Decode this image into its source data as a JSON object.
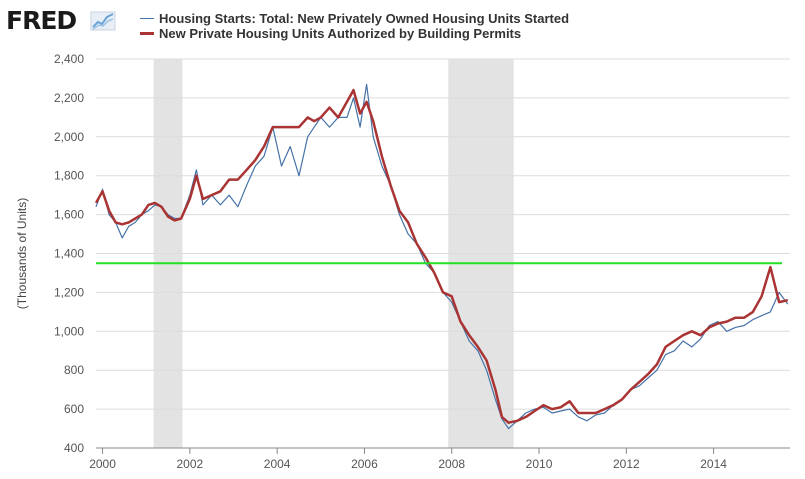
{
  "branding": {
    "logo_text": "FRED",
    "logo_icon": "chart-line-icon"
  },
  "chart_data": {
    "type": "line",
    "title": "",
    "xlabel": "",
    "ylabel": "(Thousands of Units)",
    "ylim": [
      400,
      2400
    ],
    "xlim": [
      1999.85,
      2015.75
    ],
    "y_ticks": [
      400,
      600,
      800,
      1000,
      1200,
      1400,
      1600,
      1800,
      2000,
      2200,
      2400
    ],
    "y_tick_labels": [
      "400",
      "600",
      "800",
      "1,000",
      "1,200",
      "1,400",
      "1,600",
      "1,800",
      "2,000",
      "2,200",
      "2,400"
    ],
    "x_ticks": [
      2000,
      2002,
      2004,
      2006,
      2008,
      2010,
      2012,
      2014
    ],
    "x_tick_labels": [
      "2000",
      "2002",
      "2004",
      "2006",
      "2008",
      "2010",
      "2012",
      "2014"
    ],
    "grid": true,
    "legend_position": "top-left",
    "recessions": [
      {
        "start": 2001.17,
        "end": 2001.83
      },
      {
        "start": 2007.92,
        "end": 2009.42
      }
    ],
    "reference_line": {
      "y": 1350,
      "color": "#22e022"
    },
    "series": [
      {
        "name": "Housing Starts: Total: New Privately Owned Housing Units Started",
        "color": "#4572a7",
        "x": [
          1999.85,
          2000.0,
          2000.15,
          2000.3,
          2000.45,
          2000.6,
          2000.75,
          2000.9,
          2001.05,
          2001.2,
          2001.35,
          2001.5,
          2001.65,
          2001.8,
          2002.0,
          2002.15,
          2002.3,
          2002.5,
          2002.7,
          2002.9,
          2003.1,
          2003.3,
          2003.5,
          2003.7,
          2003.9,
          2004.1,
          2004.3,
          2004.5,
          2004.7,
          2004.85,
          2005.0,
          2005.2,
          2005.4,
          2005.6,
          2005.75,
          2005.9,
          2006.05,
          2006.2,
          2006.4,
          2006.6,
          2006.8,
          2007.0,
          2007.2,
          2007.4,
          2007.6,
          2007.8,
          2008.0,
          2008.2,
          2008.4,
          2008.6,
          2008.8,
          2009.0,
          2009.15,
          2009.3,
          2009.5,
          2009.7,
          2009.9,
          2010.1,
          2010.3,
          2010.5,
          2010.7,
          2010.9,
          2011.1,
          2011.3,
          2011.5,
          2011.7,
          2011.9,
          2012.1,
          2012.3,
          2012.5,
          2012.7,
          2012.9,
          2013.1,
          2013.3,
          2013.5,
          2013.7,
          2013.9,
          2014.1,
          2014.3,
          2014.5,
          2014.7,
          2014.9,
          2015.1,
          2015.3,
          2015.5,
          2015.7
        ],
        "values": [
          1640,
          1730,
          1600,
          1560,
          1480,
          1540,
          1560,
          1600,
          1620,
          1650,
          1640,
          1600,
          1580,
          1580,
          1700,
          1830,
          1650,
          1700,
          1650,
          1700,
          1640,
          1750,
          1850,
          1900,
          2050,
          1850,
          1950,
          1800,
          2000,
          2050,
          2100,
          2050,
          2100,
          2100,
          2200,
          2050,
          2270,
          2000,
          1850,
          1750,
          1600,
          1500,
          1450,
          1350,
          1300,
          1200,
          1150,
          1050,
          950,
          900,
          800,
          650,
          550,
          500,
          540,
          580,
          600,
          610,
          580,
          590,
          600,
          560,
          540,
          570,
          580,
          620,
          650,
          700,
          720,
          760,
          800,
          880,
          900,
          950,
          920,
          960,
          1030,
          1050,
          1000,
          1020,
          1030,
          1060,
          1080,
          1100,
          1200,
          1140
        ]
      },
      {
        "name": "New Private Housing Units Authorized by Building Permits",
        "color": "#aa3333",
        "x": [
          1999.85,
          2000.0,
          2000.15,
          2000.3,
          2000.45,
          2000.6,
          2000.75,
          2000.9,
          2001.05,
          2001.2,
          2001.35,
          2001.5,
          2001.65,
          2001.8,
          2002.0,
          2002.15,
          2002.3,
          2002.5,
          2002.7,
          2002.9,
          2003.1,
          2003.3,
          2003.5,
          2003.7,
          2003.9,
          2004.1,
          2004.3,
          2004.5,
          2004.7,
          2004.85,
          2005.0,
          2005.2,
          2005.4,
          2005.6,
          2005.75,
          2005.9,
          2006.05,
          2006.2,
          2006.4,
          2006.6,
          2006.8,
          2007.0,
          2007.2,
          2007.4,
          2007.6,
          2007.8,
          2008.0,
          2008.2,
          2008.4,
          2008.6,
          2008.8,
          2009.0,
          2009.15,
          2009.3,
          2009.5,
          2009.7,
          2009.9,
          2010.1,
          2010.3,
          2010.5,
          2010.7,
          2010.9,
          2011.1,
          2011.3,
          2011.5,
          2011.7,
          2011.9,
          2012.1,
          2012.3,
          2012.5,
          2012.7,
          2012.9,
          2013.1,
          2013.3,
          2013.5,
          2013.7,
          2013.9,
          2014.1,
          2014.3,
          2014.5,
          2014.7,
          2014.9,
          2015.1,
          2015.3,
          2015.5,
          2015.7
        ],
        "values": [
          1660,
          1720,
          1620,
          1560,
          1550,
          1560,
          1580,
          1600,
          1650,
          1660,
          1640,
          1590,
          1570,
          1580,
          1680,
          1800,
          1680,
          1700,
          1720,
          1780,
          1780,
          1830,
          1880,
          1950,
          2050,
          2050,
          2050,
          2050,
          2100,
          2080,
          2100,
          2150,
          2100,
          2180,
          2240,
          2120,
          2180,
          2080,
          1900,
          1750,
          1620,
          1560,
          1450,
          1380,
          1300,
          1200,
          1180,
          1050,
          980,
          920,
          850,
          700,
          560,
          530,
          540,
          560,
          590,
          620,
          600,
          610,
          640,
          580,
          580,
          580,
          600,
          620,
          650,
          700,
          740,
          780,
          830,
          920,
          950,
          980,
          1000,
          980,
          1020,
          1040,
          1050,
          1070,
          1070,
          1100,
          1180,
          1330,
          1150,
          1160
        ]
      }
    ]
  }
}
